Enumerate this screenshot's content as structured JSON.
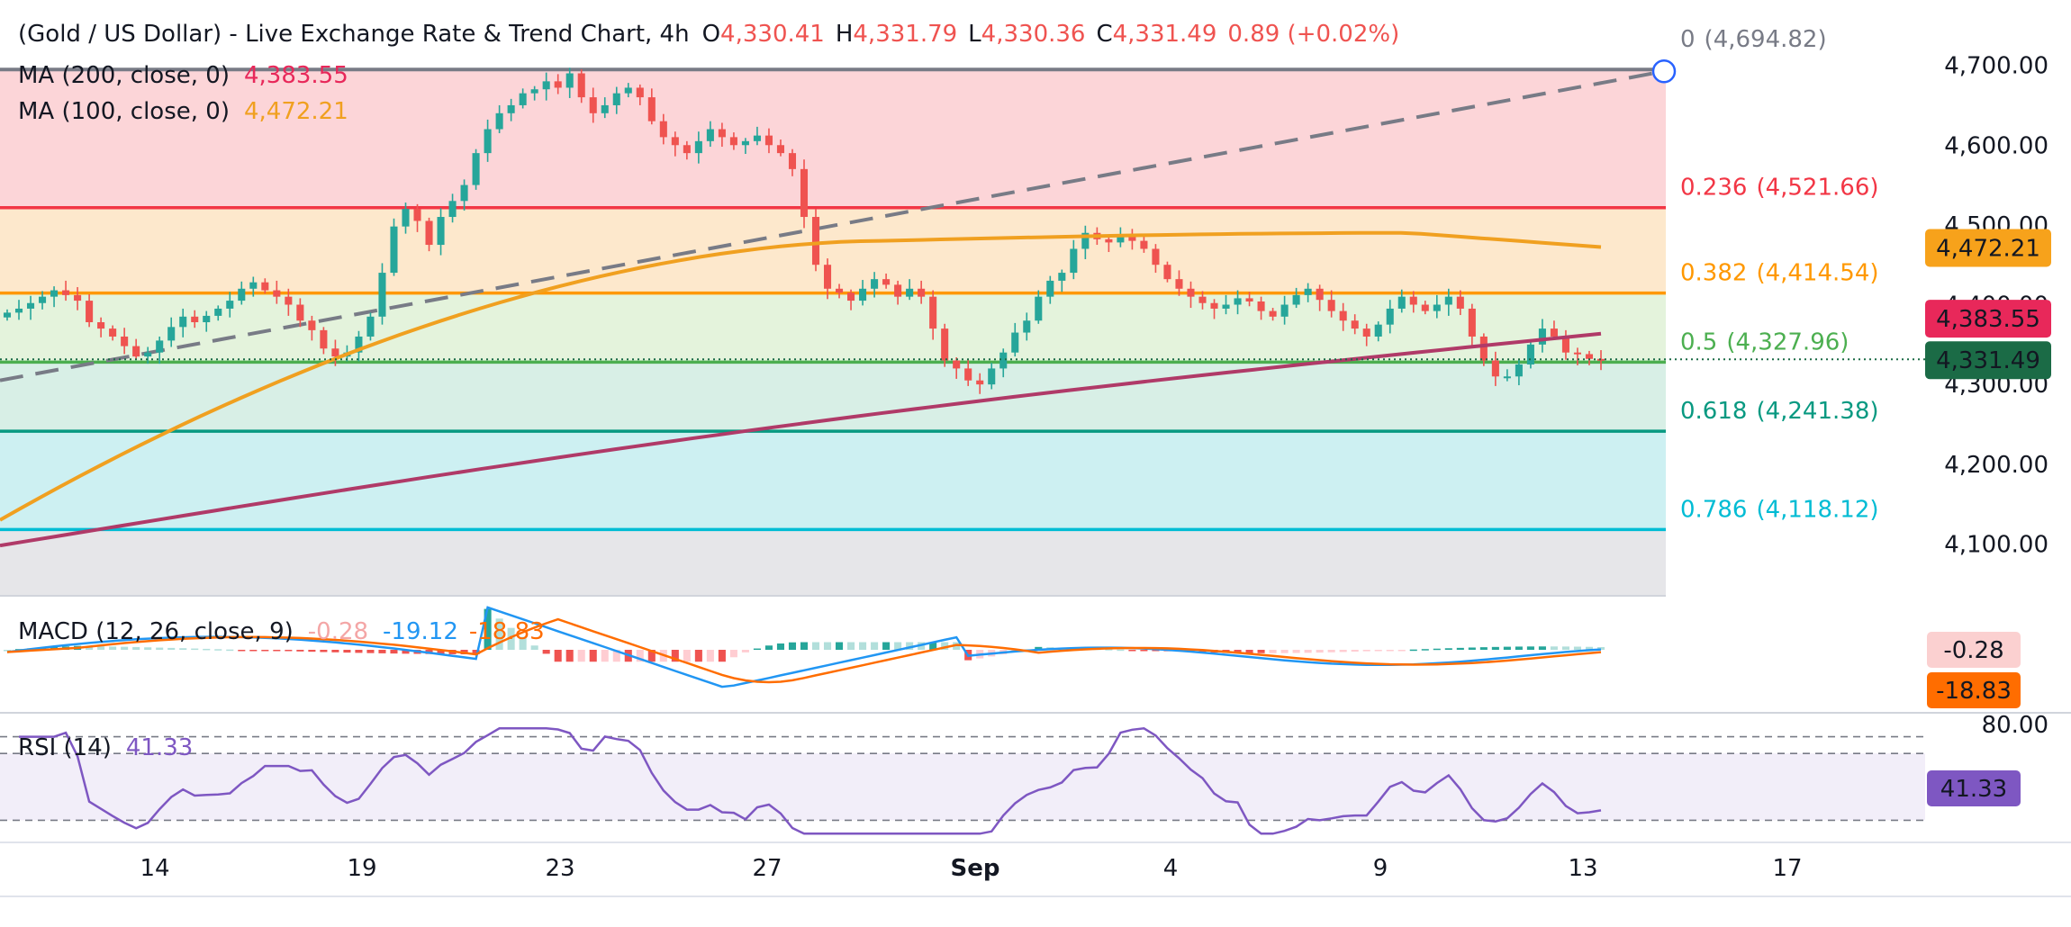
{
  "header": {
    "title": "(Gold / US Dollar) - Live Exchange Rate & Trend Chart, 4h",
    "o_label": "O",
    "o_value": "4,330.41",
    "h_label": "H",
    "h_value": "4,331.79",
    "l_label": "L",
    "l_value": "4,330.36",
    "c_label": "C",
    "c_value": "4,331.49",
    "change": "0.89 (+0.02%)"
  },
  "legends": {
    "ma200_label": "MA (200, close, 0)",
    "ma200_value": "4,383.55",
    "ma100_label": "MA (100, close, 0)",
    "ma100_value": "4,472.21"
  },
  "colors": {
    "up": "#26a69a",
    "down": "#ef5350",
    "ma200": "#b03a68",
    "ma100": "#f0a020",
    "macd_line": "#2196f3",
    "signal_line": "#ff6d00",
    "rsi_line": "#7e57c2",
    "fib0": "#787b86",
    "fib236": "#f23645",
    "fib382": "#ff9800",
    "fib5": "#4caf50",
    "fib618": "#089981",
    "fib786": "#00bcd4"
  },
  "fib_levels": [
    {
      "ratio": "0",
      "price_label": "(4,694.82)",
      "value": 4694.82,
      "color": "#787b86"
    },
    {
      "ratio": "0.236",
      "price_label": "(4,521.66)",
      "value": 4521.66,
      "color": "#f23645"
    },
    {
      "ratio": "0.382",
      "price_label": "(4,414.54)",
      "value": 4414.54,
      "color": "#ff9800"
    },
    {
      "ratio": "0.5",
      "price_label": "(4,327.96)",
      "value": 4327.96,
      "color": "#4caf50"
    },
    {
      "ratio": "0.618",
      "price_label": "(4,241.38)",
      "value": 4241.38,
      "color": "#089981"
    },
    {
      "ratio": "0.786",
      "price_label": "(4,118.12)",
      "value": 4118.12,
      "color": "#00bcd4"
    }
  ],
  "price_axis": {
    "ticks": [
      "4,700.00",
      "4,600.00",
      "4,500.00",
      "4,400.00",
      "4,300.00",
      "4,200.00",
      "4,100.00"
    ],
    "tick_values": [
      4700,
      4600,
      4500,
      4400,
      4300,
      4200,
      4100
    ],
    "badges": [
      {
        "label": "4,472.21",
        "value": 4472.21,
        "color": "#f7a21b"
      },
      {
        "label": "4,383.55",
        "value": 4383.55,
        "color": "#e8285a"
      },
      {
        "label": "4,331.49",
        "value": 4331.49,
        "color": "#1b6b46"
      }
    ]
  },
  "time_axis": {
    "labels": [
      "14",
      "19",
      "23",
      "27",
      "Sep",
      "4",
      "9",
      "13",
      "17"
    ]
  },
  "macd": {
    "label": "MACD (12, 26, close, 9)",
    "hist_value": "-0.28",
    "macd_value": "-19.12",
    "signal_value": "-18.83",
    "badge_hist": "-0.28",
    "badge_signal": "-18.83"
  },
  "rsi": {
    "label": "RSI (14)",
    "value": "41.33",
    "axis_label": "80.00",
    "badge": "41.33",
    "levels": [
      80,
      70,
      30
    ]
  },
  "chart_data": {
    "type": "candlestick",
    "timeframe": "4h",
    "ylim": [
      4035,
      4712
    ],
    "x_labels": [
      "14",
      "19",
      "23",
      "27",
      "Sep",
      "4",
      "9",
      "13",
      "17"
    ],
    "close_series": [
      4390,
      4395,
      4402,
      4410,
      4418,
      4412,
      4405,
      4378,
      4370,
      4360,
      4348,
      4335,
      4340,
      4355,
      4372,
      4385,
      4378,
      4386,
      4395,
      4405,
      4420,
      4428,
      4418,
      4410,
      4400,
      4380,
      4368,
      4345,
      4335,
      4340,
      4360,
      4385,
      4440,
      4498,
      4520,
      4505,
      4475,
      4510,
      4530,
      4550,
      4590,
      4620,
      4640,
      4650,
      4665,
      4670,
      4680,
      4672,
      4690,
      4660,
      4640,
      4650,
      4665,
      4672,
      4660,
      4630,
      4610,
      4600,
      4590,
      4605,
      4620,
      4610,
      4600,
      4605,
      4612,
      4600,
      4590,
      4570,
      4510,
      4450,
      4420,
      4415,
      4405,
      4420,
      4432,
      4425,
      4410,
      4420,
      4410,
      4370,
      4330,
      4320,
      4305,
      4300,
      4320,
      4340,
      4365,
      4380,
      4410,
      4430,
      4440,
      4470,
      4490,
      4482,
      4478,
      4485,
      4480,
      4470,
      4450,
      4432,
      4420,
      4410,
      4402,
      4395,
      4400,
      4408,
      4404,
      4392,
      4385,
      4400,
      4412,
      4420,
      4406,
      4392,
      4380,
      4370,
      4360,
      4375,
      4395,
      4410,
      4400,
      4392,
      4400,
      4410,
      4395,
      4360,
      4330,
      4310,
      4310,
      4325,
      4350,
      4370,
      4360,
      4340,
      4338,
      4332,
      4331
    ],
    "ma200": {
      "start": 4098,
      "end": 4383.55
    },
    "ma100": {
      "start": 4130,
      "peak": 4490,
      "end": 4472.21
    },
    "trend_line": {
      "start": 4305,
      "end": 4694.82
    }
  }
}
